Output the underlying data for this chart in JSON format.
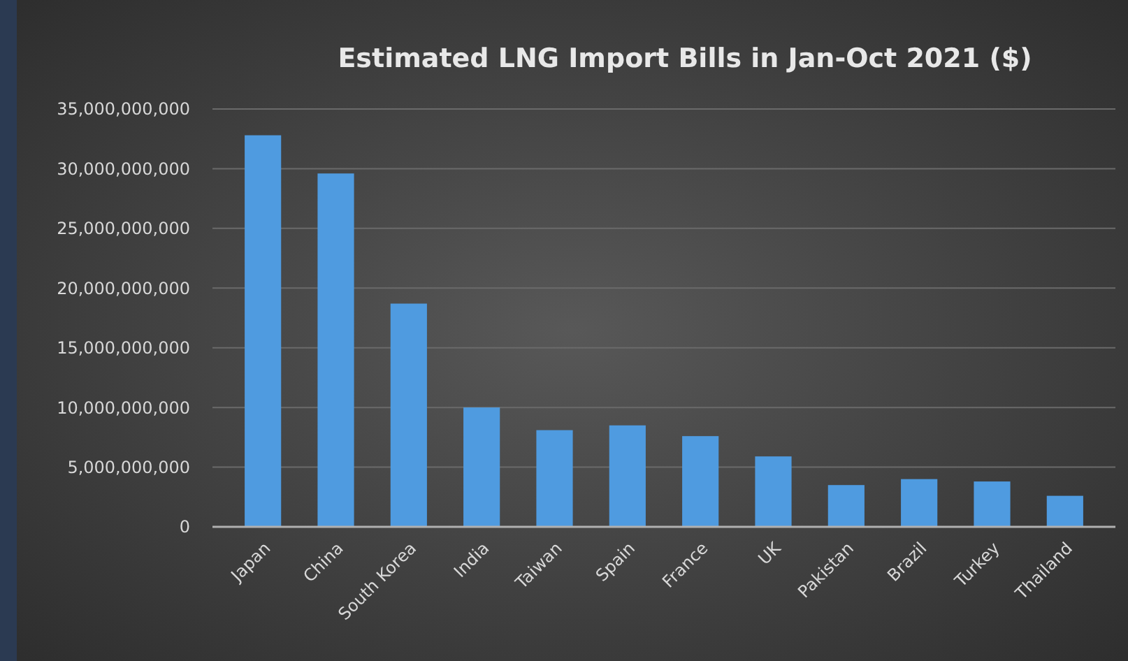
{
  "chart_data": {
    "type": "bar",
    "title": "Estimated LNG Import Bills in Jan-Oct 2021 ($)",
    "categories": [
      "Japan",
      "China",
      "South Korea",
      "India",
      "Taiwan",
      "Spain",
      "France",
      "UK",
      "Pakistan",
      "Brazil",
      "Turkey",
      "Thailand"
    ],
    "values": [
      32800000000,
      29600000000,
      18700000000,
      10000000000,
      8100000000,
      8500000000,
      7600000000,
      5900000000,
      3500000000,
      4000000000,
      3800000000,
      2600000000
    ],
    "color": "#4f9be0",
    "ylim": [
      0,
      35000000000
    ],
    "yticks": [
      {
        "value": 0,
        "label": "0"
      },
      {
        "value": 5000000000,
        "label": "5,000,000,000"
      },
      {
        "value": 10000000000,
        "label": "10,000,000,000"
      },
      {
        "value": 15000000000,
        "label": "15,000,000,000"
      },
      {
        "value": 20000000000,
        "label": "20,000,000,000"
      },
      {
        "value": 25000000000,
        "label": "25,000,000,000"
      },
      {
        "value": 30000000000,
        "label": "30,000,000,000"
      },
      {
        "value": 35000000000,
        "label": "35,000,000,000"
      }
    ],
    "grid": "y"
  }
}
